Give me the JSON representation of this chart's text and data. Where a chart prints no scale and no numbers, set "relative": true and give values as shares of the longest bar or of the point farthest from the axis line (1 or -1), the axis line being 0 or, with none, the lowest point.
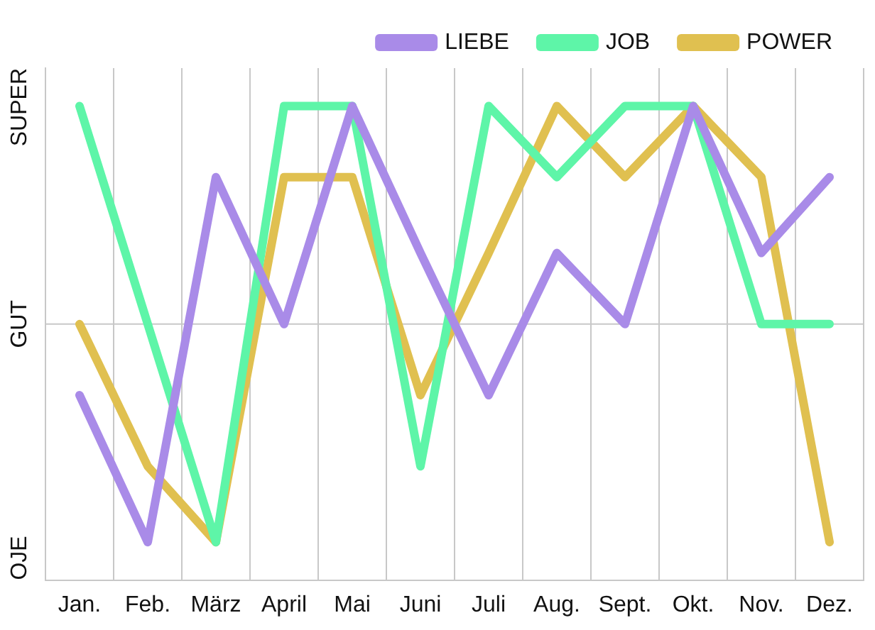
{
  "chart_data": {
    "type": "line",
    "relative": true,
    "categories": [
      "Jan.",
      "Feb.",
      "März",
      "April",
      "Mai",
      "Juni",
      "Juli",
      "Aug.",
      "Sept.",
      "Okt.",
      "Nov.",
      "Dez."
    ],
    "series": [
      {
        "name": "LIEBE",
        "color": "#a98be8",
        "values": [
          0.39,
          0.08,
          0.85,
          0.54,
          1,
          0.69,
          0.39,
          0.69,
          0.54,
          1,
          0.69,
          0.85
        ]
      },
      {
        "name": "JOB",
        "color": "#5ef5a8",
        "values": [
          1,
          0.54,
          0.08,
          1,
          1,
          0.24,
          1,
          0.85,
          1,
          1,
          0.54,
          0.54
        ]
      },
      {
        "name": "POWER",
        "color": "#e0c050",
        "values": [
          0.54,
          0.24,
          0.08,
          0.85,
          0.85,
          0.39,
          0.69,
          1,
          0.85,
          1,
          0.85,
          0.08
        ]
      }
    ],
    "annotations": [
      "OJE",
      "GUT",
      "SUPER"
    ],
    "grid": true,
    "legend": "top right",
    "marker": "none",
    "line_style": "solid"
  }
}
